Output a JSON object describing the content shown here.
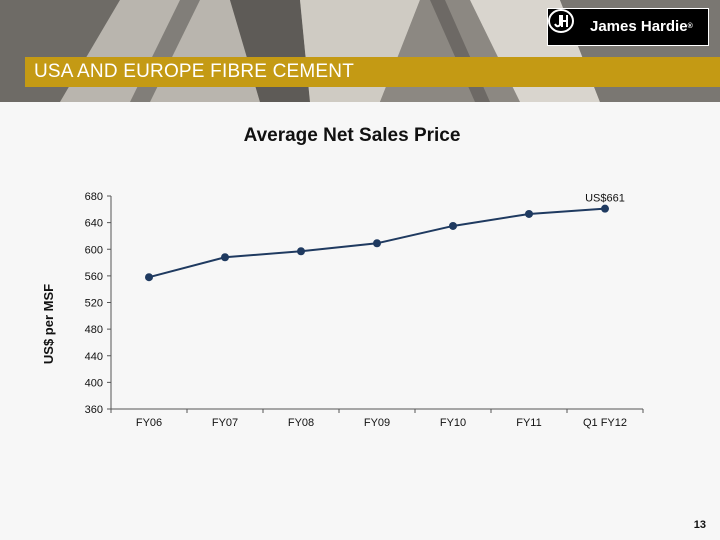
{
  "header": {
    "section_title": "USA AND EUROPE FIBRE CEMENT",
    "logo_text": "James Hardie",
    "logo_registered": "®",
    "accent_color": "#c49a14"
  },
  "page_number": "13",
  "chart_data": {
    "type": "line",
    "title": "Average Net Sales Price",
    "xlabel": "",
    "ylabel": "US$ per MSF",
    "categories": [
      "FY06",
      "FY07",
      "FY08",
      "FY09",
      "FY10",
      "FY11",
      "Q1 FY12"
    ],
    "series": [
      {
        "values": [
          558,
          588,
          597,
          609,
          635,
          653,
          661
        ],
        "color": "#1f3a60"
      }
    ],
    "ylim": [
      360,
      680
    ],
    "yticks": [
      360,
      400,
      440,
      480,
      520,
      560,
      600,
      640,
      680
    ],
    "annotations": [
      {
        "category": "Q1 FY12",
        "text": "US$661"
      }
    ],
    "grid": false,
    "legend": "none"
  }
}
